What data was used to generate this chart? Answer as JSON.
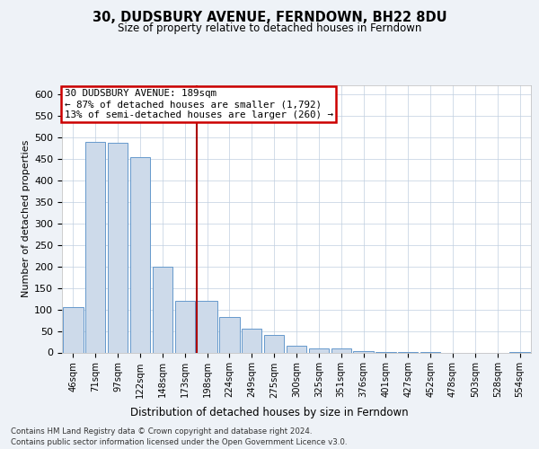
{
  "title": "30, DUDSBURY AVENUE, FERNDOWN, BH22 8DU",
  "subtitle": "Size of property relative to detached houses in Ferndown",
  "xlabel": "Distribution of detached houses by size in Ferndown",
  "ylabel": "Number of detached properties",
  "bar_labels": [
    "46sqm",
    "71sqm",
    "97sqm",
    "122sqm",
    "148sqm",
    "173sqm",
    "198sqm",
    "224sqm",
    "249sqm",
    "275sqm",
    "300sqm",
    "325sqm",
    "351sqm",
    "376sqm",
    "401sqm",
    "427sqm",
    "452sqm",
    "478sqm",
    "503sqm",
    "528sqm",
    "554sqm"
  ],
  "bar_values": [
    105,
    488,
    487,
    454,
    200,
    120,
    120,
    82,
    56,
    40,
    15,
    10,
    10,
    3,
    2,
    1,
    1,
    0,
    0,
    0,
    2
  ],
  "bar_color": "#cddaea",
  "bar_edgecolor": "#6699cc",
  "red_line_index": 6,
  "annotation_text": "30 DUDSBURY AVENUE: 189sqm\n← 87% of detached houses are smaller (1,792)\n13% of semi-detached houses are larger (260) →",
  "annotation_box_color": "#ffffff",
  "annotation_border_color": "#cc0000",
  "ylim": [
    0,
    620
  ],
  "yticks": [
    0,
    50,
    100,
    150,
    200,
    250,
    300,
    350,
    400,
    450,
    500,
    550,
    600
  ],
  "footer_line1": "Contains HM Land Registry data © Crown copyright and database right 2024.",
  "footer_line2": "Contains public sector information licensed under the Open Government Licence v3.0.",
  "bg_color": "#eef2f7",
  "plot_bg_color": "#ffffff",
  "grid_color": "#c0cfe0"
}
